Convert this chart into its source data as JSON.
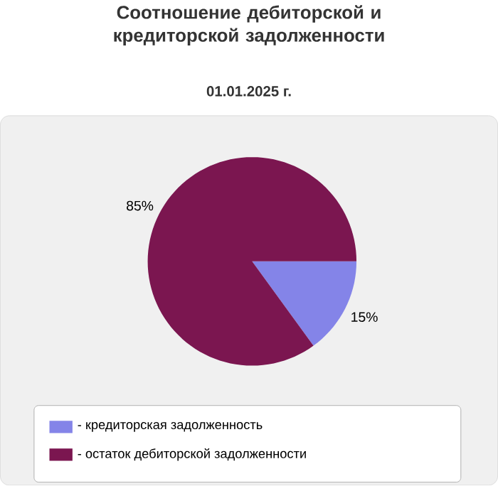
{
  "chart_data": {
    "type": "pie",
    "title": "Соотношение дебиторской и кредиторской задолженности",
    "subtitle": "01.01.2025 г.",
    "categories": [
      "- кредиторская задолженность",
      "- остаток дебиторской задолженности"
    ],
    "values": [
      15,
      85
    ],
    "colors": [
      "#8484e8",
      "#7b1650"
    ],
    "value_labels": [
      "15%",
      "85%"
    ],
    "legend": "bottom"
  }
}
